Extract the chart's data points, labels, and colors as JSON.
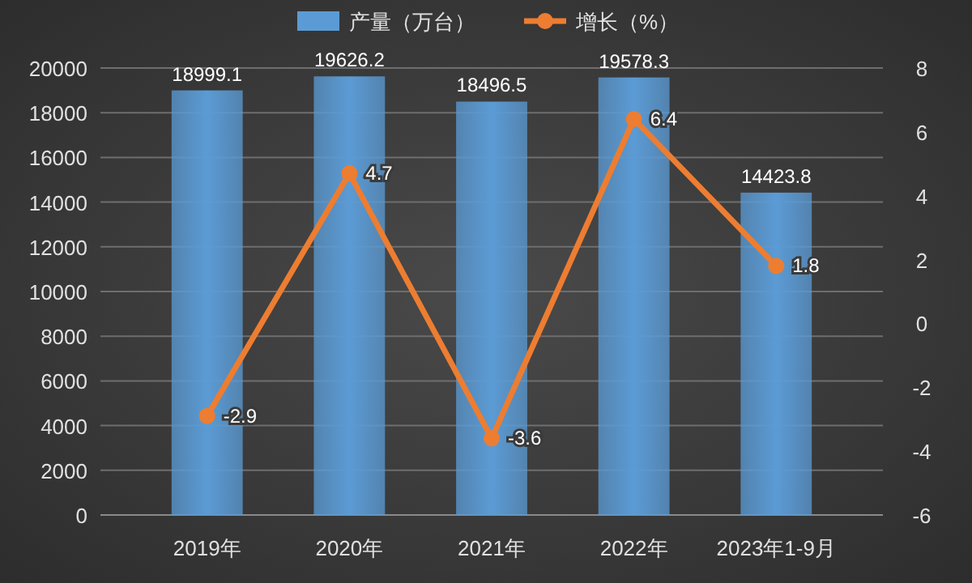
{
  "chart_data": {
    "type": "bar",
    "categories": [
      "2019年",
      "2020年",
      "2021年",
      "2022年",
      "2023年1-9月"
    ],
    "series": [
      {
        "name": "产量（万台）",
        "color": "#5b9bd5",
        "values": [
          18999.1,
          19626.2,
          18496.5,
          19578.3,
          14423.8
        ]
      },
      {
        "name": "增长（%）",
        "type": "line",
        "axis": "y2",
        "color": "#ed7d31",
        "values": [
          -2.9,
          4.7,
          -3.6,
          6.4,
          1.8
        ]
      }
    ],
    "ylim": [
      0,
      20000
    ],
    "yticks": [
      0,
      2000,
      4000,
      6000,
      8000,
      10000,
      12000,
      14000,
      16000,
      18000,
      20000
    ],
    "y2lim": [
      -6,
      8
    ],
    "y2ticks": [
      -6,
      -4,
      -2,
      0,
      2,
      4,
      6,
      8
    ],
    "grid": "y",
    "legend": "top",
    "marker": "circle",
    "data_labels": true
  }
}
